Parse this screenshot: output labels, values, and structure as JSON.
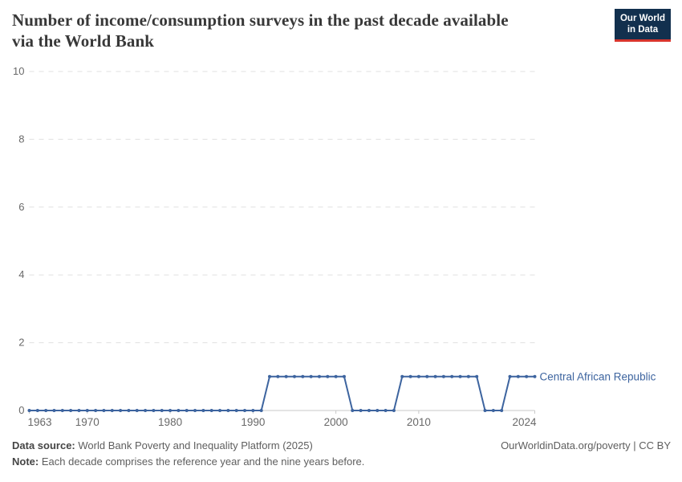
{
  "header": {
    "title_line1": "Number of income/consumption surveys in the past decade available",
    "title_line2": "via the World Bank",
    "logo_line1": "Our World",
    "logo_line2": "in Data"
  },
  "footer": {
    "source_label": "Data source:",
    "source_text": "World Bank Poverty and Inequality Platform (2025)",
    "note_label": "Note:",
    "note_text": "Each decade comprises the reference year and the nine years before.",
    "link": "OurWorldinData.org/poverty | CC BY"
  },
  "colors": {
    "line": "#3d649f",
    "series_label": "#3d649f",
    "grid": "#e0e0e0",
    "axis": "#c8c8c8",
    "tick_label": "#696969",
    "logo_bg": "#12304e",
    "logo_stripe": "#d8352d",
    "title": "#383838"
  },
  "chart_data": {
    "type": "line",
    "title": "Number of income/consumption surveys in the past decade available via the World Bank",
    "xlabel": "",
    "ylabel": "",
    "xlim": [
      1963,
      2024
    ],
    "ylim": [
      0,
      10
    ],
    "x_ticks": [
      1963,
      1970,
      1980,
      1990,
      2000,
      2010,
      2024
    ],
    "y_ticks": [
      0,
      2,
      4,
      6,
      8,
      10
    ],
    "grid": "horizontal-dashed",
    "legend": "label-at-line-end",
    "series": [
      {
        "name": "Central African Republic",
        "color": "#3d649f",
        "x": [
          1963,
          1964,
          1965,
          1966,
          1967,
          1968,
          1969,
          1970,
          1971,
          1972,
          1973,
          1974,
          1975,
          1976,
          1977,
          1978,
          1979,
          1980,
          1981,
          1982,
          1983,
          1984,
          1985,
          1986,
          1987,
          1988,
          1989,
          1990,
          1991,
          1992,
          1993,
          1994,
          1995,
          1996,
          1997,
          1998,
          1999,
          2000,
          2001,
          2002,
          2003,
          2004,
          2005,
          2006,
          2007,
          2008,
          2009,
          2010,
          2011,
          2012,
          2013,
          2014,
          2015,
          2016,
          2017,
          2018,
          2019,
          2020,
          2021,
          2022,
          2023,
          2024
        ],
        "y": [
          0,
          0,
          0,
          0,
          0,
          0,
          0,
          0,
          0,
          0,
          0,
          0,
          0,
          0,
          0,
          0,
          0,
          0,
          0,
          0,
          0,
          0,
          0,
          0,
          0,
          0,
          0,
          0,
          0,
          1,
          1,
          1,
          1,
          1,
          1,
          1,
          1,
          1,
          1,
          0,
          0,
          0,
          0,
          0,
          0,
          1,
          1,
          1,
          1,
          1,
          1,
          1,
          1,
          1,
          1,
          0,
          0,
          0,
          1,
          1,
          1,
          1
        ]
      }
    ]
  }
}
